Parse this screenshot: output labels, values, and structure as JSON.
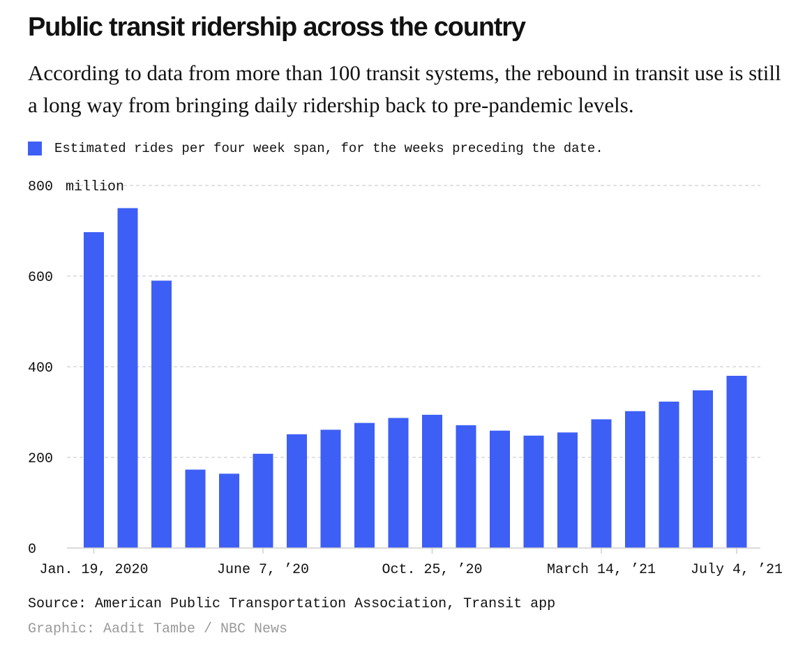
{
  "header": {
    "title": "Public transit ridership across the country",
    "subtitle": "According to data from more than 100 transit systems, the rebound in transit use is still a long way from bringing daily ridership back to pre-pandemic levels."
  },
  "legend": {
    "label": "Estimated rides per four week span, for the weeks preceding the date."
  },
  "footer": {
    "source": "Source: American Public Transportation Association, Transit app",
    "credit": "Graphic: Aadit Tambe / NBC News"
  },
  "chart_data": {
    "type": "bar",
    "title": "Public transit ridership across the country",
    "unit_label": "million",
    "color": "#3d5ff5",
    "grid": true,
    "ylim": [
      0,
      800
    ],
    "yticks": [
      0,
      200,
      400,
      600,
      800
    ],
    "x_labels": [
      "Jan. 19, 2020",
      "June 7, ’20",
      "Oct. 25, ’20",
      "March 14, ’21",
      "July 4, ’21"
    ],
    "x_label_bar_index": [
      0,
      5,
      10,
      15,
      19
    ],
    "series": [
      {
        "name": "Estimated rides per four week span, for the weeks preceding the date.",
        "values": [
          697,
          750,
          590,
          173,
          164,
          208,
          251,
          261,
          276,
          287,
          294,
          271,
          259,
          248,
          255,
          284,
          302,
          323,
          348,
          380
        ]
      }
    ]
  }
}
